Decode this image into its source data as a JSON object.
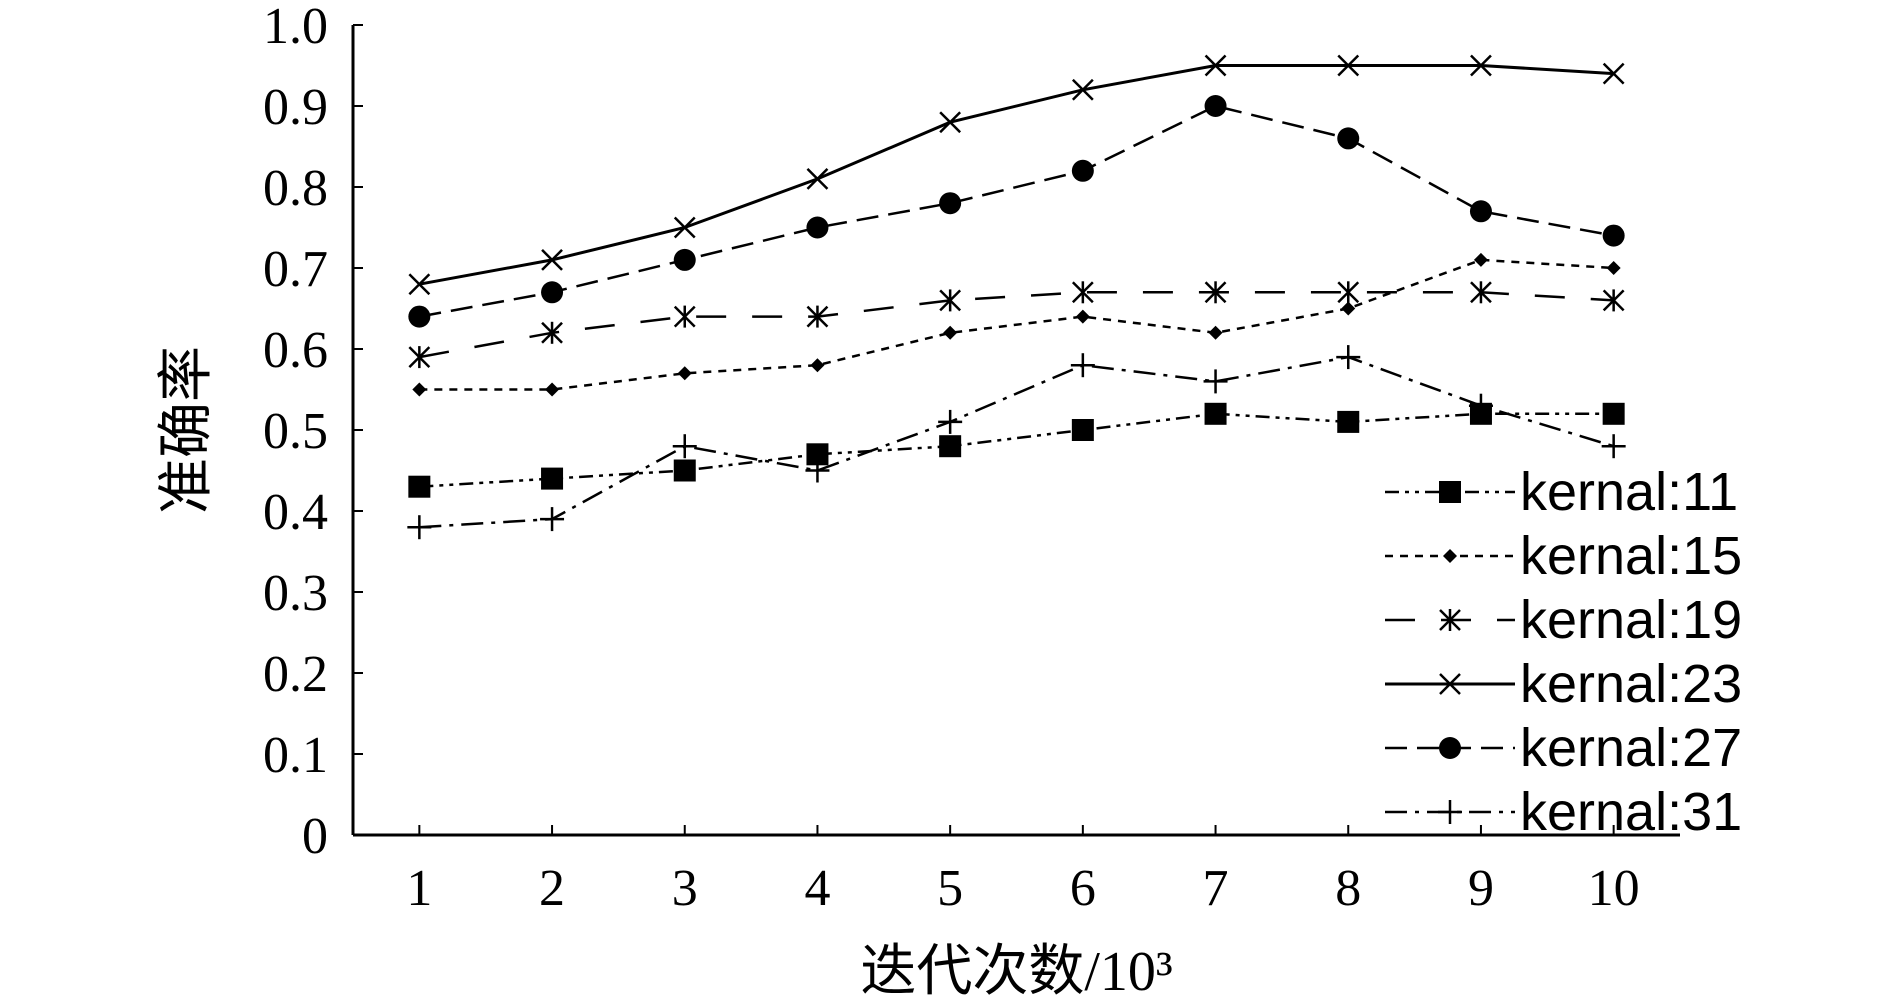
{
  "chart_data": {
    "type": "line",
    "xlabel": "迭代次数/10³",
    "ylabel": "准确率",
    "x": [
      1,
      2,
      3,
      4,
      5,
      6,
      7,
      8,
      9,
      10
    ],
    "xlim": [
      0.5,
      10.5
    ],
    "ylim": [
      0,
      1.0
    ],
    "yticks": [
      "0",
      "0.1",
      "0.2",
      "0.3",
      "0.4",
      "0.5",
      "0.6",
      "0.7",
      "0.8",
      "0.9",
      "1.0"
    ],
    "xticks": [
      "1",
      "2",
      "3",
      "4",
      "5",
      "6",
      "7",
      "8",
      "9",
      "10"
    ],
    "grid": false,
    "legend_position": "bottom-right",
    "series": [
      {
        "name": "kernal:11",
        "marker": "square",
        "dash": "dash-dot-dot",
        "color": "#000000",
        "values": [
          0.43,
          0.44,
          0.45,
          0.47,
          0.48,
          0.5,
          0.52,
          0.51,
          0.52,
          0.52
        ]
      },
      {
        "name": "kernal:15",
        "marker": "diamond",
        "dash": "short-dash",
        "color": "#000000",
        "values": [
          0.55,
          0.55,
          0.57,
          0.58,
          0.62,
          0.64,
          0.62,
          0.65,
          0.71,
          0.7
        ]
      },
      {
        "name": "kernal:19",
        "marker": "asterisk",
        "dash": "long-dash",
        "color": "#000000",
        "values": [
          0.59,
          0.62,
          0.64,
          0.64,
          0.66,
          0.67,
          0.67,
          0.67,
          0.67,
          0.66
        ]
      },
      {
        "name": "kernal:23",
        "marker": "x",
        "dash": "solid",
        "color": "#000000",
        "values": [
          0.68,
          0.71,
          0.75,
          0.81,
          0.88,
          0.92,
          0.95,
          0.95,
          0.95,
          0.94
        ]
      },
      {
        "name": "kernal:27",
        "marker": "circle",
        "dash": "dash",
        "color": "#000000",
        "values": [
          0.64,
          0.67,
          0.71,
          0.75,
          0.78,
          0.82,
          0.9,
          0.86,
          0.77,
          0.74
        ]
      },
      {
        "name": "kernal:31",
        "marker": "plus",
        "dash": "dash-dot",
        "color": "#000000",
        "values": [
          0.38,
          0.39,
          0.48,
          0.45,
          0.51,
          0.58,
          0.56,
          0.59,
          0.53,
          0.48
        ]
      }
    ]
  }
}
